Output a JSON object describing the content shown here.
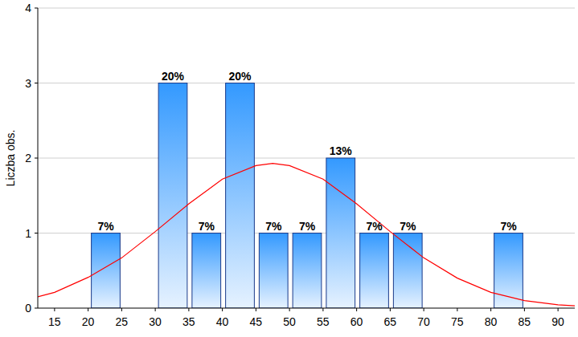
{
  "chart_data": {
    "type": "histogram",
    "y_label": "Liczba obs.",
    "bins": [
      20,
      25,
      30,
      35,
      40,
      45,
      50,
      55,
      60,
      65,
      70,
      75,
      80,
      85
    ],
    "values": [
      1,
      0,
      3,
      1,
      3,
      1,
      1,
      2,
      1,
      1,
      0,
      0,
      1
    ],
    "percent_labels": [
      "7%",
      null,
      "20%",
      "7%",
      "20%",
      "7%",
      "7%",
      "13%",
      "7%",
      "7%",
      null,
      null,
      "7%"
    ],
    "color": "#3399ff",
    "curve": {
      "type": "line",
      "color": "#ff0000",
      "x": [
        12.5,
        15,
        20,
        25,
        30,
        35,
        40,
        45,
        47.5,
        50,
        55,
        60,
        65,
        70,
        75,
        80,
        85,
        90,
        92.5
      ],
      "values": [
        0.15,
        0.21,
        0.41,
        0.67,
        1.02,
        1.39,
        1.72,
        1.9,
        1.93,
        1.9,
        1.72,
        1.39,
        1.02,
        0.67,
        0.4,
        0.21,
        0.1,
        0.045,
        0.03
      ]
    },
    "xlim": [
      12.5,
      92.5
    ],
    "xticks": [
      15,
      20,
      25,
      30,
      35,
      40,
      45,
      50,
      55,
      60,
      65,
      70,
      75,
      80,
      85,
      90
    ],
    "ylim": [
      0,
      4
    ],
    "yticks": [
      0,
      1,
      2,
      3,
      4
    ],
    "grid": true,
    "data_labels": true
  }
}
